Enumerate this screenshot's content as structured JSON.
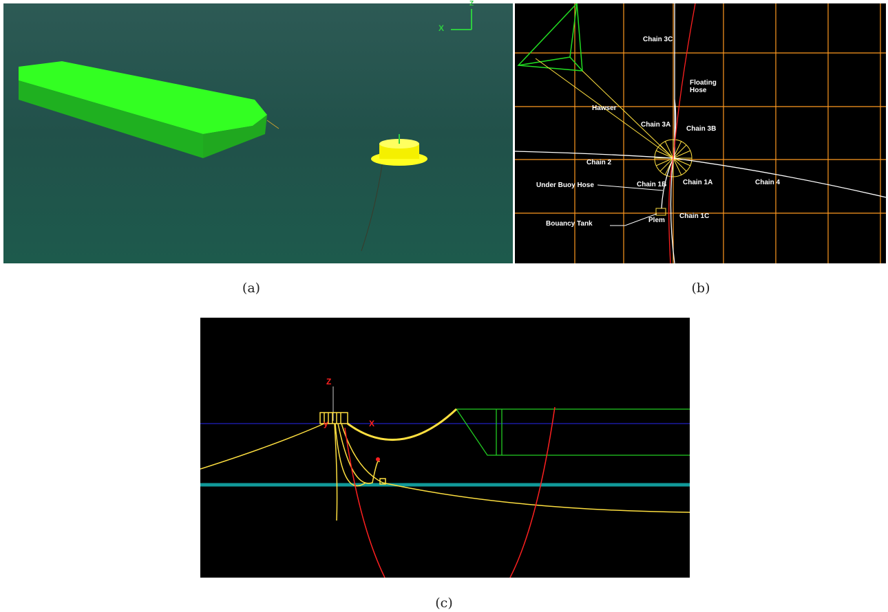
{
  "panels": [
    {
      "caption": "(a)",
      "axis_labels": [
        "X",
        "Z"
      ]
    },
    {
      "caption": "(b)",
      "labels": [
        "Chain 3C",
        "Floating Hose",
        "Hawser",
        "Chain 3A",
        "Chain 3B",
        "Chain 2",
        "Chain 1B",
        "Chain 1A",
        "Chain 4",
        "Under Buoy Hose",
        "Bouancy Tank",
        "Plem",
        "Chain 1C"
      ]
    },
    {
      "caption": "(c)",
      "axis_labels": [
        "Z",
        "y",
        "X"
      ]
    }
  ]
}
